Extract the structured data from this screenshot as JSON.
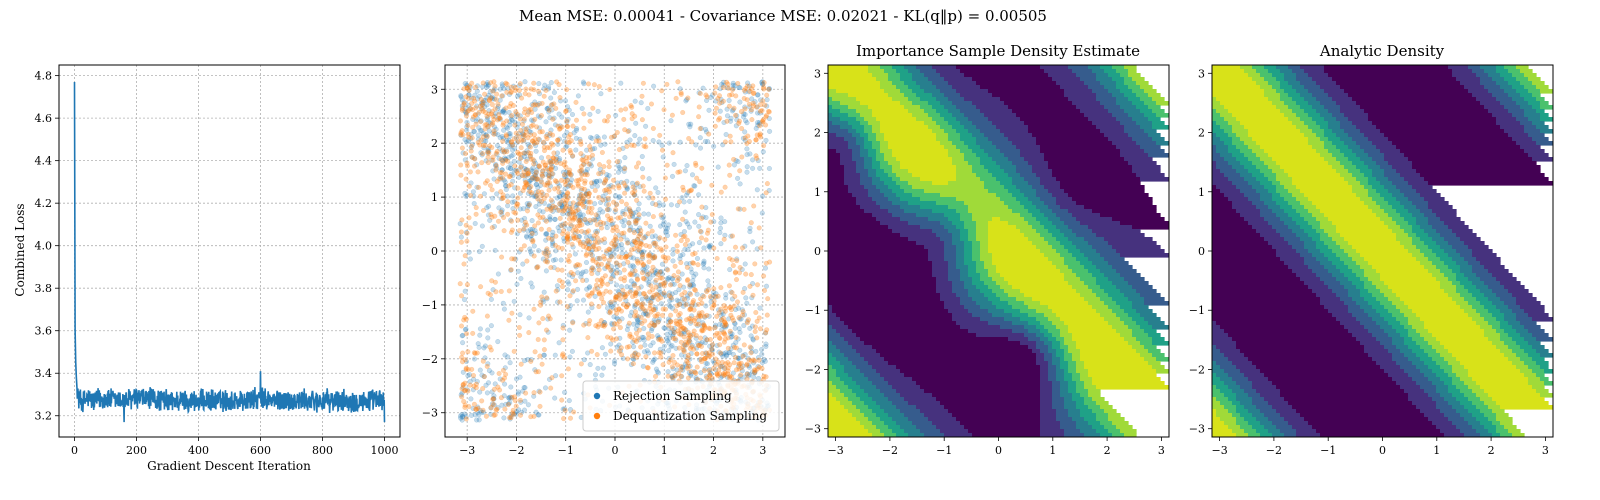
{
  "figure": {
    "suptitle": "Mean MSE: 0.00041 - Covariance MSE: 0.02021 - KL(q‖p) = 0.00505"
  },
  "chart_data": [
    {
      "type": "line",
      "title": "",
      "xlabel": "Gradient Descent Iteration",
      "ylabel": "Combined Loss",
      "xlim": [
        -50,
        1050
      ],
      "ylim": [
        3.1,
        4.85
      ],
      "xticks": [
        0,
        200,
        400,
        600,
        800,
        1000
      ],
      "yticks": [
        3.2,
        3.4,
        3.6,
        3.8,
        4.0,
        4.2,
        4.4,
        4.6,
        4.8
      ],
      "ytick_labels": [
        "3.2",
        "3.4",
        "3.6",
        "3.8",
        "4.0",
        "4.2",
        "4.4",
        "4.6",
        "4.8"
      ],
      "grid": true,
      "series": [
        {
          "color": "#1f77b4",
          "x": [
            0,
            2,
            4,
            6,
            8,
            10,
            15,
            20,
            30,
            40,
            50,
            60,
            80,
            100,
            150,
            200,
            250,
            300,
            350,
            400,
            450,
            500,
            550,
            600,
            650,
            700,
            750,
            800,
            850,
            900,
            950,
            1000
          ],
          "y": [
            4.77,
            3.6,
            3.45,
            3.38,
            3.33,
            3.3,
            3.28,
            3.27,
            3.27,
            3.28,
            3.28,
            3.27,
            3.28,
            3.28,
            3.27,
            3.28,
            3.28,
            3.27,
            3.27,
            3.27,
            3.27,
            3.27,
            3.27,
            3.28,
            3.27,
            3.27,
            3.27,
            3.27,
            3.27,
            3.27,
            3.27,
            3.27
          ],
          "noise_amplitude": 0.06
        }
      ]
    },
    {
      "type": "scatter",
      "title": "",
      "xlim": [
        -3.45,
        3.45
      ],
      "ylim": [
        -3.45,
        3.45
      ],
      "xticks": [
        -3,
        -2,
        -1,
        0,
        1,
        2,
        3
      ],
      "yticks": [
        -3,
        -2,
        -1,
        0,
        1,
        2,
        3
      ],
      "xtick_labels": [
        "−3",
        "−2",
        "−1",
        "0",
        "1",
        "2",
        "3"
      ],
      "ytick_labels": [
        "−3",
        "−2",
        "−1",
        "0",
        "1",
        "2",
        "3"
      ],
      "grid": true,
      "legend_position": "lower-right",
      "series": [
        {
          "name": "Rejection Sampling",
          "color": "#1f77b4",
          "alpha": 0.25
        },
        {
          "name": "Dequantization Sampling",
          "color": "#ff7f0e",
          "alpha": 0.35
        }
      ],
      "distribution": "density ∝ exp(cos(x + y)) on [−π, π]²"
    },
    {
      "type": "heatmap",
      "title": "Importance Sample Density Estimate",
      "xlim": [
        -3.14,
        3.14
      ],
      "ylim": [
        -3.14,
        3.14
      ],
      "xticks": [
        -3,
        -2,
        -1,
        0,
        1,
        2,
        3
      ],
      "yticks": [
        -3,
        -2,
        -1,
        0,
        1,
        2,
        3
      ],
      "xtick_labels": [
        "−3",
        "−2",
        "−1",
        "0",
        "1",
        "2",
        "3"
      ],
      "ytick_labels": [
        "−3",
        "−2",
        "−1",
        "0",
        "1",
        "2",
        "3"
      ],
      "colormap": "viridis",
      "levels": 8
    },
    {
      "type": "heatmap",
      "title": "Analytic Density",
      "xlim": [
        -3.14,
        3.14
      ],
      "ylim": [
        -3.14,
        3.14
      ],
      "xticks": [
        -3,
        -2,
        -1,
        0,
        1,
        2,
        3
      ],
      "yticks": [
        -3,
        -2,
        -1,
        0,
        1,
        2,
        3
      ],
      "xtick_labels": [
        "−3",
        "−2",
        "−1",
        "0",
        "1",
        "2",
        "3"
      ],
      "ytick_labels": [
        "−3",
        "−2",
        "−1",
        "0",
        "1",
        "2",
        "3"
      ],
      "colormap": "viridis",
      "levels": 8
    }
  ],
  "palette": {
    "viridis": [
      "#440154",
      "#46327e",
      "#365c8d",
      "#277f8e",
      "#1fa187",
      "#4ac16d",
      "#a0da39",
      "#d8e219"
    ]
  }
}
